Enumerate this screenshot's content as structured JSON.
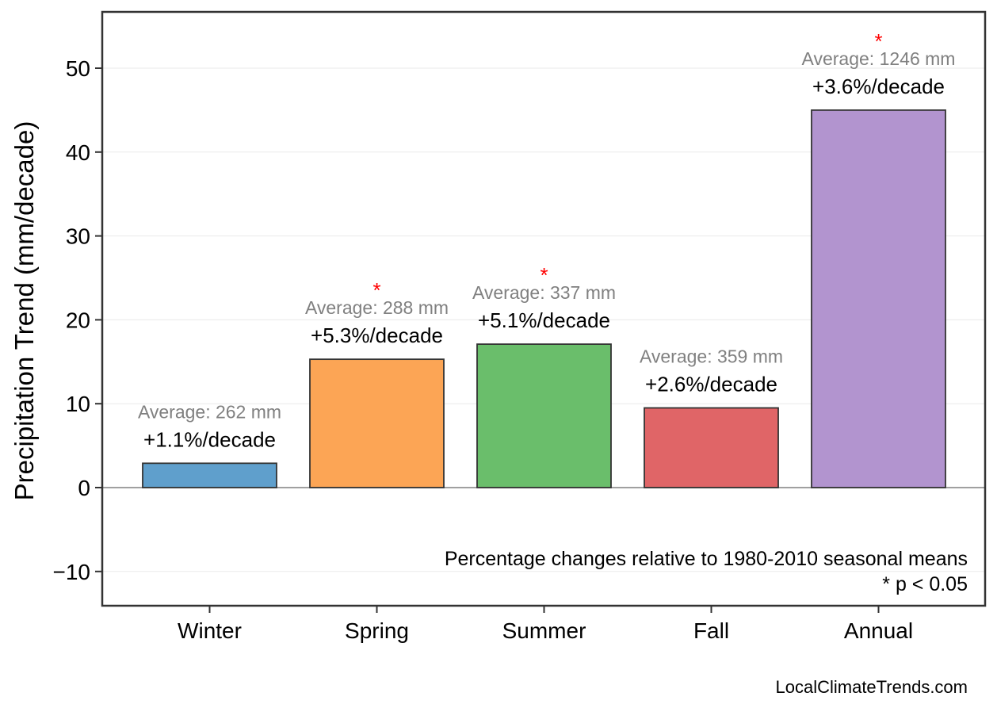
{
  "chart_data": {
    "type": "bar",
    "title": "",
    "xlabel": "",
    "ylabel": "Precipitation Trend (mm/decade)",
    "ylim": [
      -14.1,
      56.7
    ],
    "yticks": [
      -10,
      0,
      10,
      20,
      30,
      40,
      50
    ],
    "ytick_labels": [
      "−10",
      "0",
      "10",
      "20",
      "30",
      "40",
      "50"
    ],
    "grid": true,
    "categories": [
      "Winter",
      "Spring",
      "Summer",
      "Fall",
      "Annual"
    ],
    "values": [
      2.9,
      15.3,
      17.1,
      9.5,
      45.0
    ],
    "colors": [
      "#5f9fcc",
      "#fca555",
      "#6abe6b",
      "#e06567",
      "#b294cf"
    ],
    "percent_labels": [
      "+1.1%/decade",
      "+5.3%/decade",
      "+5.1%/decade",
      "+2.6%/decade",
      "+3.6%/decade"
    ],
    "average_labels": [
      "Average: 262 mm",
      "Average: 288 mm",
      "Average: 337 mm",
      "Average: 359 mm",
      "Average: 1246 mm"
    ],
    "significant": [
      false,
      true,
      true,
      false,
      true
    ],
    "significance_marker": "*",
    "annotations": [
      "Percentage changes relative to 1980-2010 seasonal means",
      "* p < 0.05"
    ]
  },
  "footer": {
    "credit": "LocalClimateTrends.com"
  }
}
